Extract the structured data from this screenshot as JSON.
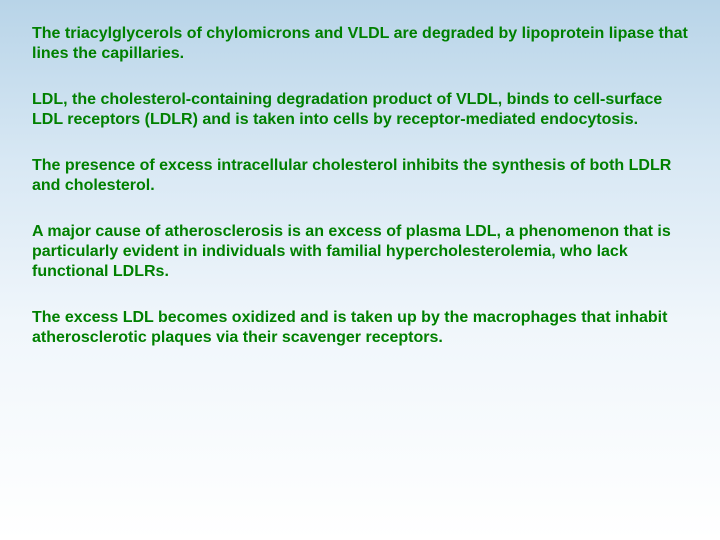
{
  "text_color": "#008000",
  "font_size": 16,
  "font_weight": "bold",
  "background_gradient": [
    "#b8d4e8",
    "#d8e8f4",
    "#f0f6fb",
    "#ffffff"
  ],
  "paragraphs": {
    "p1": "The triacylglycerols of chylomicrons and VLDL are degraded by lipoprotein lipase that lines the capillaries.",
    "p2": "LDL, the cholesterol-containing degradation product of VLDL, binds to cell-surface LDL receptors (LDLR) and is taken into cells by receptor-mediated endocytosis.",
    "p3": "The presence of excess intracellular cholesterol inhibits the synthesis of both LDLR and cholesterol.",
    "p4": "A major cause of atherosclerosis is an excess of plasma LDL, a phenomenon that is particularly evident in individuals with familial hypercholesterolemia, who lack functional LDLRs.",
    "p5": "The excess LDL becomes oxidized and is taken up by the macrophages that inhabit atherosclerotic plaques via their scavenger receptors."
  }
}
